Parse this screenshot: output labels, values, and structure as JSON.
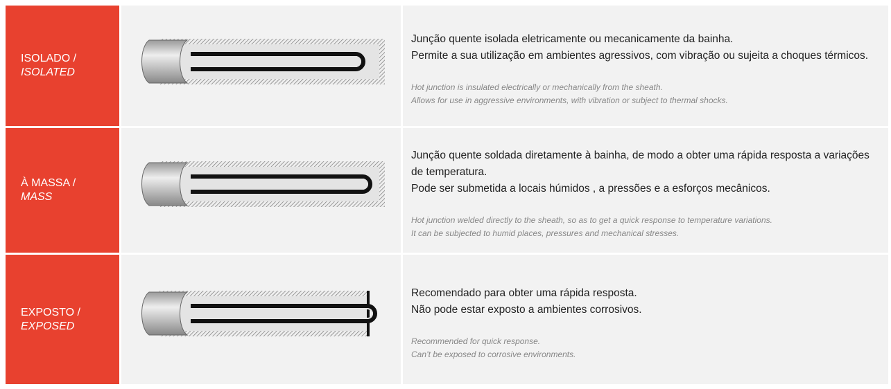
{
  "rows": [
    {
      "label_pt": "ISOLADO /",
      "label_en": "ISOLATED",
      "pt": [
        "Junção quente isolada eletricamente ou mecanicamente da bainha.",
        "Permite a sua utilização em ambientes agressivos, com vibração ou sujeita a choques térmicos."
      ],
      "en": [
        "Hot junction is insulated electrically or mechanically from the sheath.",
        "Allows for use in aggressive environments, with vibration or subject to thermal shocks."
      ]
    },
    {
      "label_pt": "À MASSA /",
      "label_en": "MASS",
      "pt": [
        "Junção quente soldada diretamente à bainha, de modo a obter uma rápida resposta a variações de temperatura.",
        "Pode ser submetida a locais húmidos , a pressões e a esforços mecânicos."
      ],
      "en": [
        "Hot junction welded directly to the sheath, so as to get a quick response to temperature variations.",
        "It can be subjected to humid places, pressures and mechanical stresses."
      ]
    },
    {
      "label_pt": "EXPOSTO /",
      "label_en": "EXPOSED",
      "pt": [
        "Recomendado para obter uma rápida resposta.",
        "Não pode estar exposto a ambientes corrosivos."
      ],
      "en": [
        "Recommended for quick response.",
        "Can’t  be exposed to corrosive environments."
      ]
    }
  ]
}
